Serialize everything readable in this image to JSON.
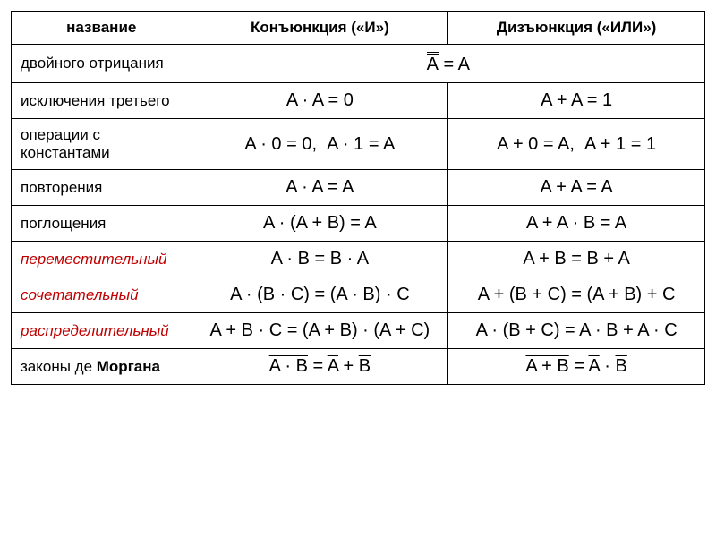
{
  "colors": {
    "border": "#000000",
    "text": "#000000",
    "red": "#c00000",
    "background": "#ffffff"
  },
  "fontsize": {
    "header": 17,
    "name": 17,
    "formula": 20
  },
  "header": {
    "name": "название",
    "conj": "Конъюнкция («И»)",
    "disj": "Дизъюнкция («ИЛИ»)"
  },
  "rows": [
    {
      "name": "двойного отрицания",
      "red": false,
      "merged": true,
      "formula_html": "<span class='dov'>A</span> = A"
    },
    {
      "name": "исключения третьего",
      "red": false,
      "conj_html": "A · <span class='ov'>A</span> = 0",
      "disj_html": "A + <span class='ov'>A</span> = 1"
    },
    {
      "name": "операции с константами",
      "red": false,
      "conj_html": "A · 0 = 0,&nbsp;&nbsp;A · 1 = A",
      "disj_html": "A + 0 = A,&nbsp;&nbsp;A + 1 = 1"
    },
    {
      "name": "повторения",
      "red": false,
      "conj_html": "A · A = A",
      "disj_html": "A + A = A"
    },
    {
      "name": "поглощения",
      "red": false,
      "conj_html": "A · (A + B) = A",
      "disj_html": "A + A · B = A"
    },
    {
      "name": "переместительный",
      "red": true,
      "conj_html": "A · B = B · A",
      "disj_html": "A + B = B + A"
    },
    {
      "name": "сочетательный",
      "red": true,
      "conj_html": "A · (B · C) = (A · B) · C",
      "disj_html": "A + (B + C) = (A + B) + C"
    },
    {
      "name": "распределительный",
      "red": true,
      "conj_html": "A + B · C = (A + B) · (A + C)",
      "disj_html": "A · (B + C) = A · B + A · C"
    },
    {
      "name_html": "законы де <span class='bold'>Моргана</span>",
      "red": false,
      "conj_html": "<span class='ov'>A · B</span> = <span class='ov'>A</span> + <span class='ov'>B</span>",
      "disj_html": "<span class='ov'>A + B</span> = <span class='ov'>A</span> · <span class='ov'>B</span>"
    }
  ]
}
